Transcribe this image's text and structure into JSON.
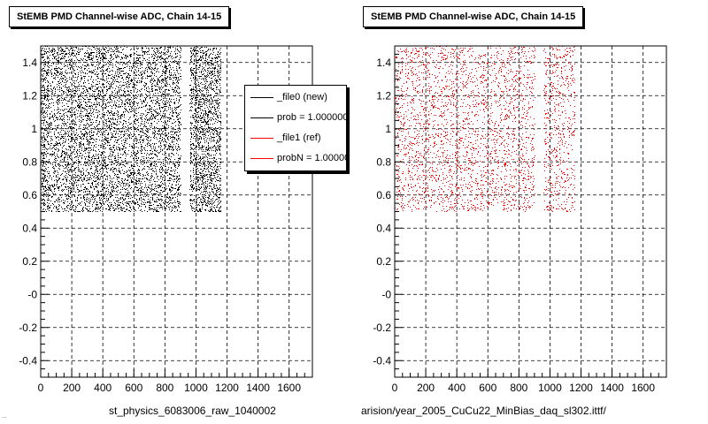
{
  "chart_data": [
    {
      "type": "scatter",
      "title": "StEMB PMD Channel-wise ADC, Chain 14-15",
      "xlabel": "st_physics_6083006_raw_1040002",
      "ylabel": "",
      "xlim": [
        0,
        1750
      ],
      "ylim": [
        -0.5,
        1.5
      ],
      "xticks": [
        0,
        200,
        400,
        600,
        800,
        1000,
        1200,
        1400,
        1600
      ],
      "yticks": [
        -0.4,
        -0.2,
        0,
        0.2,
        0.4,
        0.6,
        0.8,
        1,
        1.2,
        1.4
      ],
      "ytick_labels": [
        "-0.4",
        "-0.2",
        "-0",
        "0.2",
        "0.4",
        "0.6",
        "0.8",
        "1",
        "1.2",
        "1.4"
      ],
      "grid": true,
      "series": [
        {
          "name": "_file0 (new)",
          "color": "#000000",
          "density_per_1000": 9,
          "regions": [
            {
              "x": [
                0,
                900
              ],
              "y": [
                0.5,
                1.5
              ]
            },
            {
              "x": [
                960,
                1160
              ],
              "y": [
                0.5,
                1.5
              ]
            }
          ]
        }
      ],
      "legend": {
        "placement": "top-right",
        "entries": [
          {
            "label": "_file0 (new)",
            "color": "#000000"
          },
          {
            "label": "prob = 1.000000",
            "color": "#000000"
          },
          {
            "label": "_file1 (ref)",
            "color": "#ff0000"
          },
          {
            "label": "probN = 1.000000",
            "color": "#ff0000"
          }
        ]
      }
    },
    {
      "type": "scatter",
      "title": "StEMB PMD Channel-wise ADC, Chain 14-15",
      "xlabel": "arision/year_2005_CuCu22_MinBias_daq_sl302.ittf/",
      "ylabel": "",
      "xlim": [
        0,
        1750
      ],
      "ylim": [
        -0.5,
        1.5
      ],
      "xticks": [
        0,
        200,
        400,
        600,
        800,
        1000,
        1200,
        1400,
        1600
      ],
      "yticks": [
        -0.4,
        -0.2,
        0,
        0.2,
        0.4,
        0.6,
        0.8,
        1,
        1.2,
        1.4
      ],
      "ytick_labels": [
        "-0.4",
        "-0.2",
        "-0",
        "0.2",
        "0.4",
        "0.6",
        "0.8",
        "1",
        "1.2",
        "1.4"
      ],
      "grid": true,
      "series": [
        {
          "name": "_file1 (ref)",
          "color": "#ff0000",
          "density_per_1000": 3,
          "regions": [
            {
              "x": [
                0,
                900
              ],
              "y": [
                0.5,
                1.5
              ]
            },
            {
              "x": [
                960,
                1160
              ],
              "y": [
                0.5,
                1.5
              ]
            }
          ]
        }
      ]
    }
  ],
  "footer_text": "..."
}
